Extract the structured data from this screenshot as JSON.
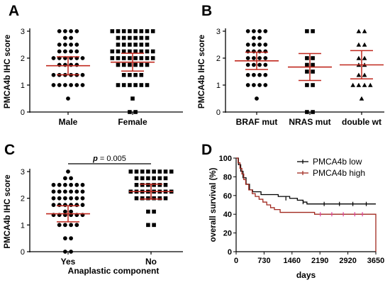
{
  "panels": {
    "A": "A",
    "B": "B",
    "C": "C",
    "D": "D"
  },
  "colors": {
    "points": "#000000",
    "summary": "#c0281e",
    "km_low": "#000000",
    "km_high": "#a0281e",
    "km_high_censor": "#e040a0"
  },
  "chart_data": [
    {
      "id": "A",
      "type": "scatter",
      "ylabel": "PMCA4b IHC score",
      "ylim": [
        0,
        3
      ],
      "yticks": [
        0,
        1,
        2,
        3
      ],
      "categories": [
        "Male",
        "Female"
      ],
      "series": [
        {
          "category": "Male",
          "marker": "circle",
          "rows": [
            [
              3,
              4
            ],
            [
              2.75,
              2
            ],
            [
              2.5,
              4
            ],
            [
              2.25,
              4
            ],
            [
              2,
              6
            ],
            [
              1.75,
              4
            ],
            [
              1.375,
              6
            ],
            [
              1,
              6
            ],
            [
              0.5,
              1
            ]
          ],
          "mean": 1.72,
          "ci": [
            1.38,
            2.05
          ]
        },
        {
          "category": "Female",
          "marker": "square",
          "rows": [
            [
              3,
              8
            ],
            [
              2.75,
              6
            ],
            [
              2.5,
              6
            ],
            [
              2.25,
              8
            ],
            [
              2,
              8
            ],
            [
              1.75,
              6
            ],
            [
              1.375,
              4
            ],
            [
              1,
              6
            ],
            [
              0.5,
              1
            ],
            [
              0,
              2
            ]
          ],
          "mean": 1.85,
          "ci": [
            1.52,
            2.18
          ]
        }
      ]
    },
    {
      "id": "B",
      "type": "scatter",
      "ylabel": "PMCA4b IHC score",
      "ylim": [
        0,
        3
      ],
      "yticks": [
        0,
        1,
        2,
        3
      ],
      "categories": [
        "BRAF mut",
        "NRAS mut",
        "double wt"
      ],
      "series": [
        {
          "category": "BRAF mut",
          "marker": "circle",
          "rows": [
            [
              3,
              4
            ],
            [
              2.75,
              2
            ],
            [
              2.5,
              4
            ],
            [
              2.25,
              4
            ],
            [
              2,
              4
            ],
            [
              1.75,
              4
            ],
            [
              1.375,
              4
            ],
            [
              1,
              4
            ],
            [
              0.5,
              1
            ]
          ],
          "mean": 1.9,
          "ci": [
            1.58,
            2.22
          ]
        },
        {
          "category": "NRAS mut",
          "marker": "square",
          "rows": [
            [
              3,
              2
            ],
            [
              2,
              2
            ],
            [
              1.75,
              2
            ],
            [
              1.5,
              2
            ],
            [
              1,
              2
            ],
            [
              0,
              2
            ]
          ],
          "mean": 1.67,
          "ci": [
            1.17,
            2.17
          ]
        },
        {
          "category": "double wt",
          "marker": "triangle",
          "rows": [
            [
              3,
              2
            ],
            [
              2.5,
              2
            ],
            [
              2,
              2
            ],
            [
              1.75,
              2
            ],
            [
              1.375,
              2
            ],
            [
              1,
              4
            ],
            [
              0.5,
              1
            ]
          ],
          "mean": 1.75,
          "ci": [
            1.23,
            2.28
          ]
        }
      ]
    },
    {
      "id": "C",
      "type": "scatter",
      "ylabel": "PMCA4b IHC score",
      "xlabel": "Anaplastic component",
      "ylim": [
        0,
        3
      ],
      "yticks": [
        0,
        1,
        2,
        3
      ],
      "categories": [
        "Yes",
        "No"
      ],
      "annotation": {
        "p_label": "p",
        "p_value": "= 0.005"
      },
      "series": [
        {
          "category": "Yes",
          "marker": "circle",
          "rows": [
            [
              3,
              1
            ],
            [
              2.75,
              2
            ],
            [
              2.5,
              6
            ],
            [
              2.25,
              6
            ],
            [
              2,
              6
            ],
            [
              1.75,
              6
            ],
            [
              1.5,
              2
            ],
            [
              1.375,
              6
            ],
            [
              1,
              4
            ],
            [
              0.5,
              2
            ],
            [
              0,
              2
            ]
          ],
          "mean": 1.42,
          "ci": [
            1.12,
            1.72
          ]
        },
        {
          "category": "No",
          "marker": "square",
          "rows": [
            [
              3,
              8
            ],
            [
              2.75,
              6
            ],
            [
              2.5,
              6
            ],
            [
              2.25,
              8
            ],
            [
              2,
              6
            ],
            [
              1.5,
              2
            ],
            [
              1,
              2
            ]
          ],
          "mean": 2.25,
          "ci": [
            1.97,
            2.53
          ]
        }
      ]
    },
    {
      "id": "D",
      "type": "line",
      "ylabel": "overall survival (%)",
      "xlabel": "days",
      "xlim": [
        0,
        3650
      ],
      "ylim": [
        0,
        100
      ],
      "xticks": [
        0,
        730,
        1460,
        2190,
        2920,
        3650
      ],
      "yticks": [
        0,
        20,
        40,
        60,
        80,
        100
      ],
      "legend_position": "top-right",
      "series": [
        {
          "name": "PMCA4b low",
          "steps": [
            [
              0,
              100
            ],
            [
              60,
              93
            ],
            [
              120,
              86
            ],
            [
              180,
              79
            ],
            [
              260,
              72
            ],
            [
              350,
              66
            ],
            [
              430,
              64
            ],
            [
              650,
              61
            ],
            [
              1100,
              59
            ],
            [
              1400,
              57
            ],
            [
              1600,
              55
            ],
            [
              1750,
              53
            ],
            [
              1850,
              51
            ],
            [
              3650,
              51
            ]
          ],
          "censors": [
            [
              1300,
              57
            ],
            [
              1750,
              53
            ],
            [
              2300,
              51
            ],
            [
              2700,
              51
            ],
            [
              3050,
              51
            ],
            [
              3400,
              51
            ]
          ]
        },
        {
          "name": "PMCA4b high",
          "steps": [
            [
              0,
              100
            ],
            [
              50,
              95
            ],
            [
              100,
              89
            ],
            [
              150,
              83
            ],
            [
              200,
              77
            ],
            [
              250,
              72
            ],
            [
              330,
              66
            ],
            [
              420,
              62
            ],
            [
              500,
              59
            ],
            [
              600,
              56
            ],
            [
              700,
              53
            ],
            [
              800,
              50
            ],
            [
              900,
              47
            ],
            [
              1000,
              45
            ],
            [
              1150,
              42
            ],
            [
              2050,
              40
            ],
            [
              3650,
              40
            ],
            [
              3650,
              0
            ]
          ],
          "censors": [
            [
              2200,
              40
            ],
            [
              2500,
              40
            ],
            [
              2800,
              40
            ],
            [
              3100,
              40
            ],
            [
              3300,
              40
            ]
          ]
        }
      ]
    }
  ]
}
